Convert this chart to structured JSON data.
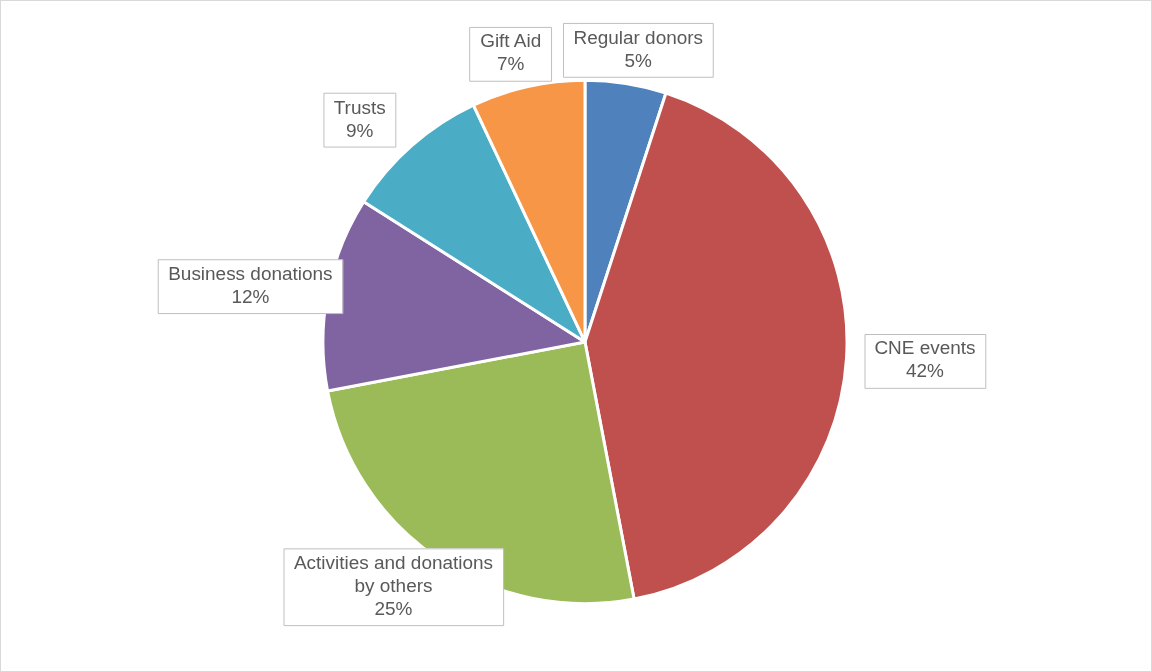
{
  "chart_data": {
    "type": "pie",
    "categories": [
      "Regular donors",
      "CNE events",
      "Activities and donations by others",
      "Business donations",
      "Trusts",
      "Gift Aid"
    ],
    "values": [
      5,
      42,
      25,
      12,
      9,
      7
    ],
    "value_labels": [
      "5%",
      "42%",
      "25%",
      "12%",
      "9%",
      "7%"
    ],
    "colors": [
      "#4f81bd",
      "#c0504d",
      "#9bbb59",
      "#8064a2",
      "#4bacc6",
      "#f79646"
    ],
    "legend": false
  }
}
